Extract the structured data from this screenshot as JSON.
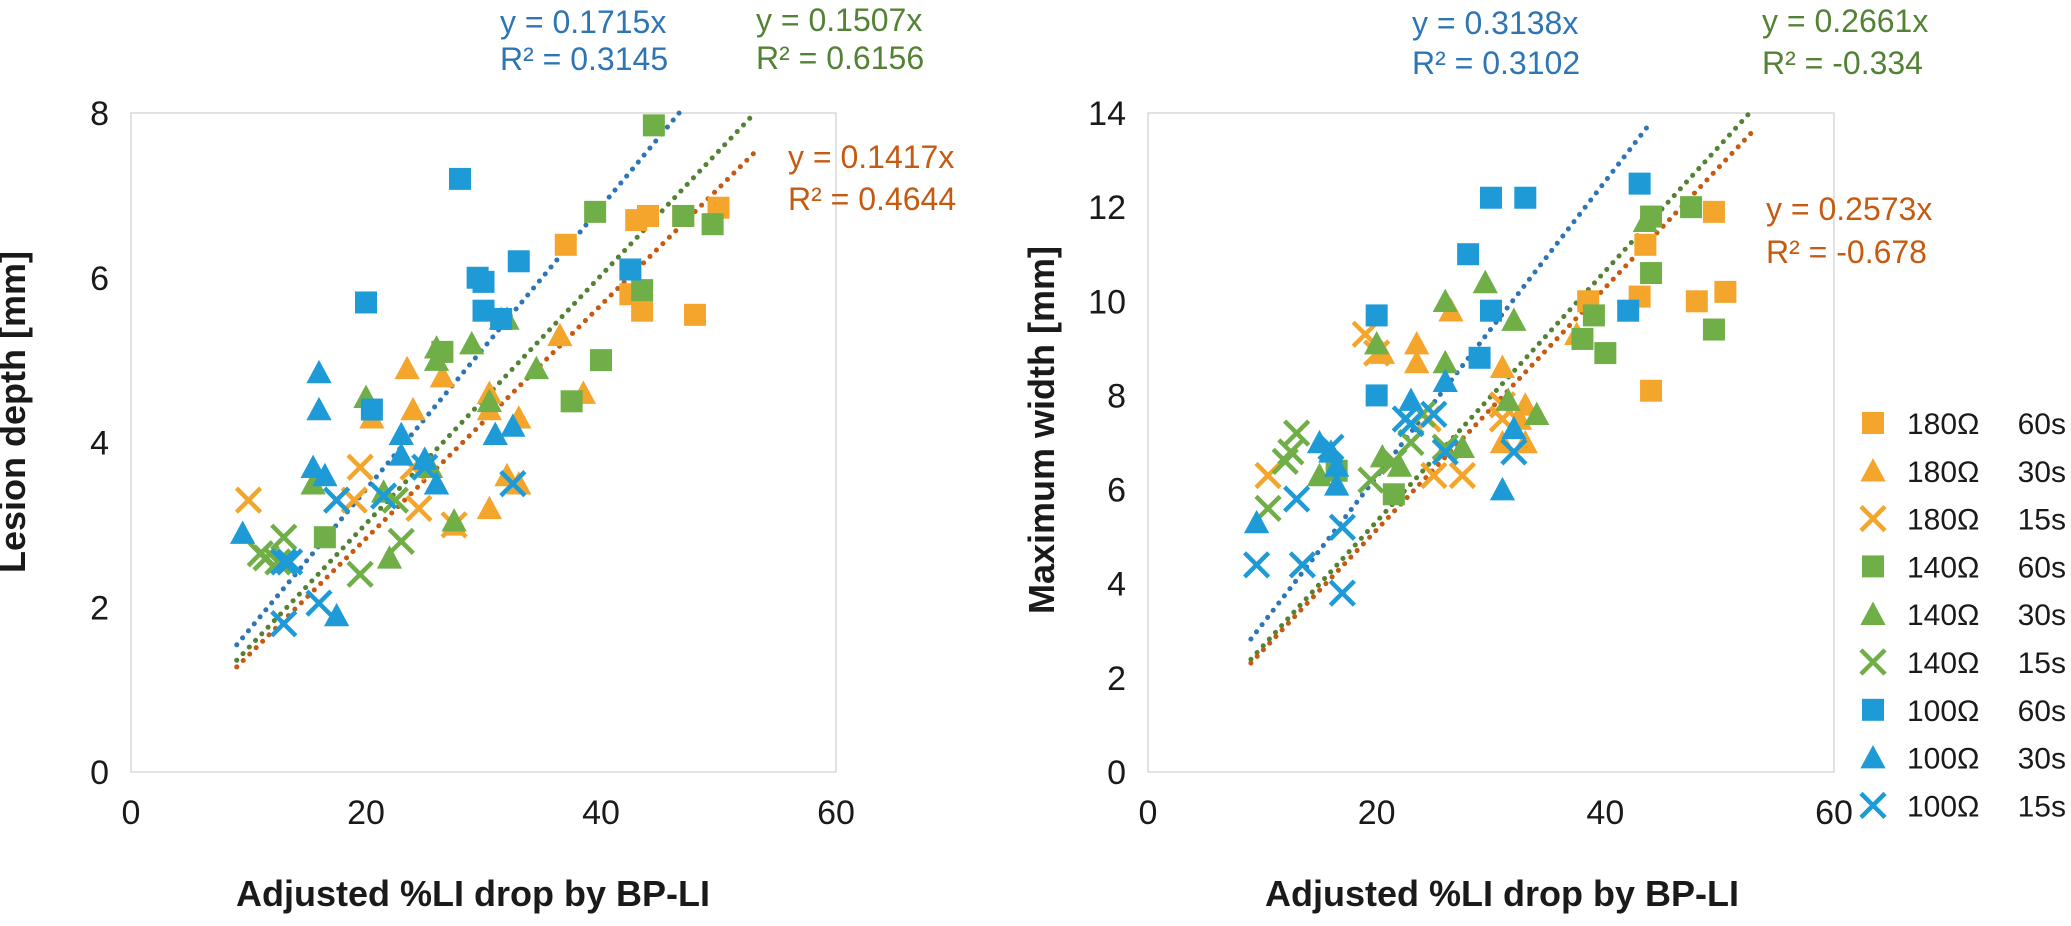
{
  "colors": {
    "180": "#F3A52C",
    "140": "#70AE48",
    "100": "#1E9BD7",
    "fit_100": "#2E75B6",
    "fit_140": "#548235",
    "fit_180": "#C55A11"
  },
  "legend": [
    {
      "resistance": "180Ω",
      "duration": "60s",
      "group": "180",
      "marker": "square"
    },
    {
      "resistance": "180Ω",
      "duration": "30s",
      "group": "180",
      "marker": "triangle"
    },
    {
      "resistance": "180Ω",
      "duration": "15s",
      "group": "180",
      "marker": "x"
    },
    {
      "resistance": "140Ω",
      "duration": "60s",
      "group": "140",
      "marker": "square"
    },
    {
      "resistance": "140Ω",
      "duration": "30s",
      "group": "140",
      "marker": "triangle"
    },
    {
      "resistance": "140Ω",
      "duration": "15s",
      "group": "140",
      "marker": "x"
    },
    {
      "resistance": "100Ω",
      "duration": "60s",
      "group": "100",
      "marker": "square"
    },
    {
      "resistance": "100Ω",
      "duration": "30s",
      "group": "100",
      "marker": "triangle"
    },
    {
      "resistance": "100Ω",
      "duration": "15s",
      "group": "100",
      "marker": "x"
    }
  ],
  "chart_data": [
    {
      "type": "scatter",
      "xlabel": "Adjusted %LI drop by BP-LI",
      "ylabel": "Lesion depth [mm]",
      "xlim": [
        0,
        60
      ],
      "ylim": [
        0,
        8
      ],
      "xticks": [
        0,
        20,
        40,
        60
      ],
      "yticks": [
        0,
        2,
        4,
        6,
        8
      ],
      "trendlines": [
        {
          "group": "100",
          "slope": 0.1715,
          "x_range": [
            9,
            47
          ],
          "equation": "y = 0.1715x",
          "r2": "R² = 0.3145"
        },
        {
          "group": "140",
          "slope": 0.1507,
          "x_range": [
            9,
            53
          ],
          "equation": "y = 0.1507x",
          "r2": "R² = 0.6156"
        },
        {
          "group": "180",
          "slope": 0.1417,
          "x_range": [
            9,
            53
          ],
          "equation": "y = 0.1417x",
          "r2": "R² = 0.4644"
        }
      ],
      "series": [
        {
          "group": "180",
          "marker": "square",
          "duration": "60s",
          "points": [
            [
              37,
              6.4
            ],
            [
              43,
              6.7
            ],
            [
              44,
              6.75
            ],
            [
              42.5,
              5.8
            ],
            [
              43.5,
              5.6
            ],
            [
              48,
              5.55
            ],
            [
              50,
              6.85
            ],
            [
              47,
              6.75
            ]
          ]
        },
        {
          "group": "180",
          "marker": "triangle",
          "duration": "30s",
          "points": [
            [
              20.5,
              4.3
            ],
            [
              23.5,
              4.9
            ],
            [
              24,
              4.4
            ],
            [
              26.5,
              4.8
            ],
            [
              27.5,
              3.0
            ],
            [
              30.5,
              4.4
            ],
            [
              30.5,
              3.2
            ],
            [
              31.5,
              5.5
            ],
            [
              32,
              3.6
            ],
            [
              33,
              4.3
            ],
            [
              33,
              3.5
            ],
            [
              36.5,
              5.3
            ],
            [
              38.5,
              4.6
            ],
            [
              30.5,
              4.6
            ]
          ]
        },
        {
          "group": "180",
          "marker": "x",
          "duration": "15s",
          "points": [
            [
              10,
              3.3
            ],
            [
              17.5,
              3.3
            ],
            [
              19,
              3.3
            ],
            [
              19.5,
              3.7
            ],
            [
              24,
              3.7
            ],
            [
              24.5,
              3.2
            ],
            [
              27.5,
              3.0
            ]
          ]
        },
        {
          "group": "140",
          "marker": "square",
          "duration": "60s",
          "points": [
            [
              16.5,
              2.85
            ],
            [
              26.5,
              5.1
            ],
            [
              37.5,
              4.5
            ],
            [
              39.5,
              6.8
            ],
            [
              40,
              5.0
            ],
            [
              43.5,
              5.85
            ],
            [
              44.5,
              7.85
            ],
            [
              47,
              6.75
            ],
            [
              49.5,
              6.65
            ]
          ]
        },
        {
          "group": "140",
          "marker": "triangle",
          "duration": "30s",
          "points": [
            [
              15.5,
              3.5
            ],
            [
              20,
              4.55
            ],
            [
              21.5,
              3.4
            ],
            [
              22,
              2.6
            ],
            [
              25.5,
              3.7
            ],
            [
              26,
              5.15
            ],
            [
              26,
              5.0
            ],
            [
              27.5,
              3.05
            ],
            [
              29,
              5.2
            ],
            [
              32,
              5.5
            ],
            [
              34.5,
              4.9
            ],
            [
              30.5,
              4.5
            ]
          ]
        },
        {
          "group": "140",
          "marker": "x",
          "duration": "15s",
          "points": [
            [
              11,
              2.65
            ],
            [
              11.5,
              2.6
            ],
            [
              12.5,
              2.55
            ],
            [
              13,
              2.85
            ],
            [
              19.5,
              2.4
            ],
            [
              23,
              2.8
            ],
            [
              22.5,
              3.3
            ]
          ]
        },
        {
          "group": "100",
          "marker": "square",
          "duration": "60s",
          "points": [
            [
              20,
              5.7
            ],
            [
              20.5,
              4.4
            ],
            [
              28,
              7.2
            ],
            [
              29.5,
              6.0
            ],
            [
              30,
              5.95
            ],
            [
              30,
              5.6
            ],
            [
              31.5,
              5.5
            ],
            [
              33,
              6.2
            ],
            [
              42.5,
              6.1
            ]
          ]
        },
        {
          "group": "100",
          "marker": "triangle",
          "duration": "30s",
          "points": [
            [
              9.5,
              2.9
            ],
            [
              15.5,
              3.7
            ],
            [
              16,
              4.85
            ],
            [
              16,
              4.4
            ],
            [
              16.5,
              3.6
            ],
            [
              17.5,
              1.9
            ],
            [
              23,
              3.85
            ],
            [
              23,
              4.1
            ],
            [
              25,
              3.8
            ],
            [
              26,
              3.5
            ],
            [
              31,
              4.1
            ],
            [
              32.5,
              4.2
            ]
          ]
        },
        {
          "group": "100",
          "marker": "x",
          "duration": "15s",
          "points": [
            [
              13,
              1.8
            ],
            [
              13,
              2.55
            ],
            [
              13.5,
              2.55
            ],
            [
              16,
              2.05
            ],
            [
              17.5,
              3.3
            ],
            [
              21.5,
              3.35
            ],
            [
              25,
              3.7
            ],
            [
              32.5,
              3.5
            ]
          ]
        }
      ]
    },
    {
      "type": "scatter",
      "xlabel": "Adjusted %LI drop by BP-LI",
      "ylabel": "Maximum width [mm]",
      "xlim": [
        0,
        60
      ],
      "ylim": [
        0,
        14
      ],
      "xticks": [
        0,
        20,
        40,
        60
      ],
      "yticks": [
        0,
        2,
        4,
        6,
        8,
        10,
        12,
        14
      ],
      "trendlines": [
        {
          "group": "100",
          "slope": 0.3138,
          "x_range": [
            9,
            44
          ],
          "equation": "y = 0.3138x",
          "r2": "R² = 0.3102"
        },
        {
          "group": "140",
          "slope": 0.2661,
          "x_range": [
            9,
            52.5
          ],
          "equation": "y = 0.2661x",
          "r2": "R² = -0.334"
        },
        {
          "group": "180",
          "slope": 0.2573,
          "x_range": [
            9,
            53
          ],
          "equation": "y = 0.2573x",
          "r2": "R² = -0.678"
        }
      ],
      "series": [
        {
          "group": "180",
          "marker": "square",
          "duration": "60s",
          "points": [
            [
              43,
              10.1
            ],
            [
              43.5,
              11.2
            ],
            [
              44,
              8.1
            ],
            [
              48,
              10.0
            ],
            [
              49.5,
              11.9
            ],
            [
              50.5,
              10.2
            ],
            [
              38.5,
              10.0
            ]
          ]
        },
        {
          "group": "180",
          "marker": "triangle",
          "duration": "30s",
          "points": [
            [
              20.5,
              8.9
            ],
            [
              23.5,
              9.1
            ],
            [
              23.5,
              8.7
            ],
            [
              26.5,
              9.8
            ],
            [
              31,
              8.6
            ],
            [
              31,
              7.0
            ],
            [
              32.5,
              7.5
            ],
            [
              33,
              7.8
            ],
            [
              33,
              7.0
            ],
            [
              37.5,
              9.3
            ]
          ]
        },
        {
          "group": "180",
          "marker": "x",
          "duration": "15s",
          "points": [
            [
              10.5,
              6.3
            ],
            [
              19,
              9.3
            ],
            [
              20,
              8.9
            ],
            [
              25,
              6.3
            ],
            [
              27.5,
              6.3
            ],
            [
              31,
              7.8
            ],
            [
              31,
              7.5
            ],
            [
              24.5,
              7.5
            ]
          ]
        },
        {
          "group": "140",
          "marker": "square",
          "duration": "60s",
          "points": [
            [
              16.5,
              6.4
            ],
            [
              21.5,
              5.9
            ],
            [
              38,
              9.2
            ],
            [
              39,
              9.7
            ],
            [
              40,
              8.9
            ],
            [
              44,
              10.6
            ],
            [
              44,
              11.8
            ],
            [
              47.5,
              12.0
            ],
            [
              49.5,
              9.4
            ]
          ]
        },
        {
          "group": "140",
          "marker": "triangle",
          "duration": "30s",
          "points": [
            [
              15,
              6.3
            ],
            [
              20,
              9.1
            ],
            [
              20.5,
              6.7
            ],
            [
              22,
              6.5
            ],
            [
              26,
              10.0
            ],
            [
              26,
              8.7
            ],
            [
              27.5,
              6.9
            ],
            [
              29.5,
              10.4
            ],
            [
              31.5,
              7.9
            ],
            [
              32,
              9.6
            ],
            [
              34,
              7.6
            ],
            [
              43.5,
              11.7
            ]
          ]
        },
        {
          "group": "140",
          "marker": "x",
          "duration": "15s",
          "points": [
            [
              10.5,
              5.6
            ],
            [
              12,
              6.6
            ],
            [
              12.5,
              6.8
            ],
            [
              13,
              7.2
            ],
            [
              19.5,
              6.2
            ],
            [
              21.5,
              6.6
            ],
            [
              23,
              7.0
            ],
            [
              26,
              6.9
            ],
            [
              24,
              7.6
            ]
          ]
        },
        {
          "group": "100",
          "marker": "square",
          "duration": "60s",
          "points": [
            [
              20,
              9.7
            ],
            [
              20,
              8.0
            ],
            [
              28,
              11.0
            ],
            [
              29,
              8.8
            ],
            [
              30,
              12.2
            ],
            [
              30,
              9.8
            ],
            [
              33,
              12.2
            ],
            [
              42,
              9.8
            ],
            [
              43,
              12.5
            ]
          ]
        },
        {
          "group": "100",
          "marker": "triangle",
          "duration": "30s",
          "points": [
            [
              9.5,
              5.3
            ],
            [
              15,
              7.0
            ],
            [
              16,
              6.8
            ],
            [
              16.5,
              6.1
            ],
            [
              16.5,
              6.5
            ],
            [
              23,
              7.9
            ],
            [
              26,
              8.3
            ],
            [
              31,
              6.0
            ],
            [
              32,
              7.3
            ]
          ]
        },
        {
          "group": "100",
          "marker": "x",
          "duration": "15s",
          "points": [
            [
              9.5,
              4.4
            ],
            [
              13,
              5.8
            ],
            [
              13.5,
              4.4
            ],
            [
              16,
              6.9
            ],
            [
              17,
              5.2
            ],
            [
              17,
              3.8
            ],
            [
              22.5,
              7.5
            ],
            [
              23,
              7.4
            ],
            [
              25,
              7.6
            ],
            [
              26,
              6.8
            ],
            [
              32,
              6.8
            ]
          ]
        }
      ]
    }
  ]
}
